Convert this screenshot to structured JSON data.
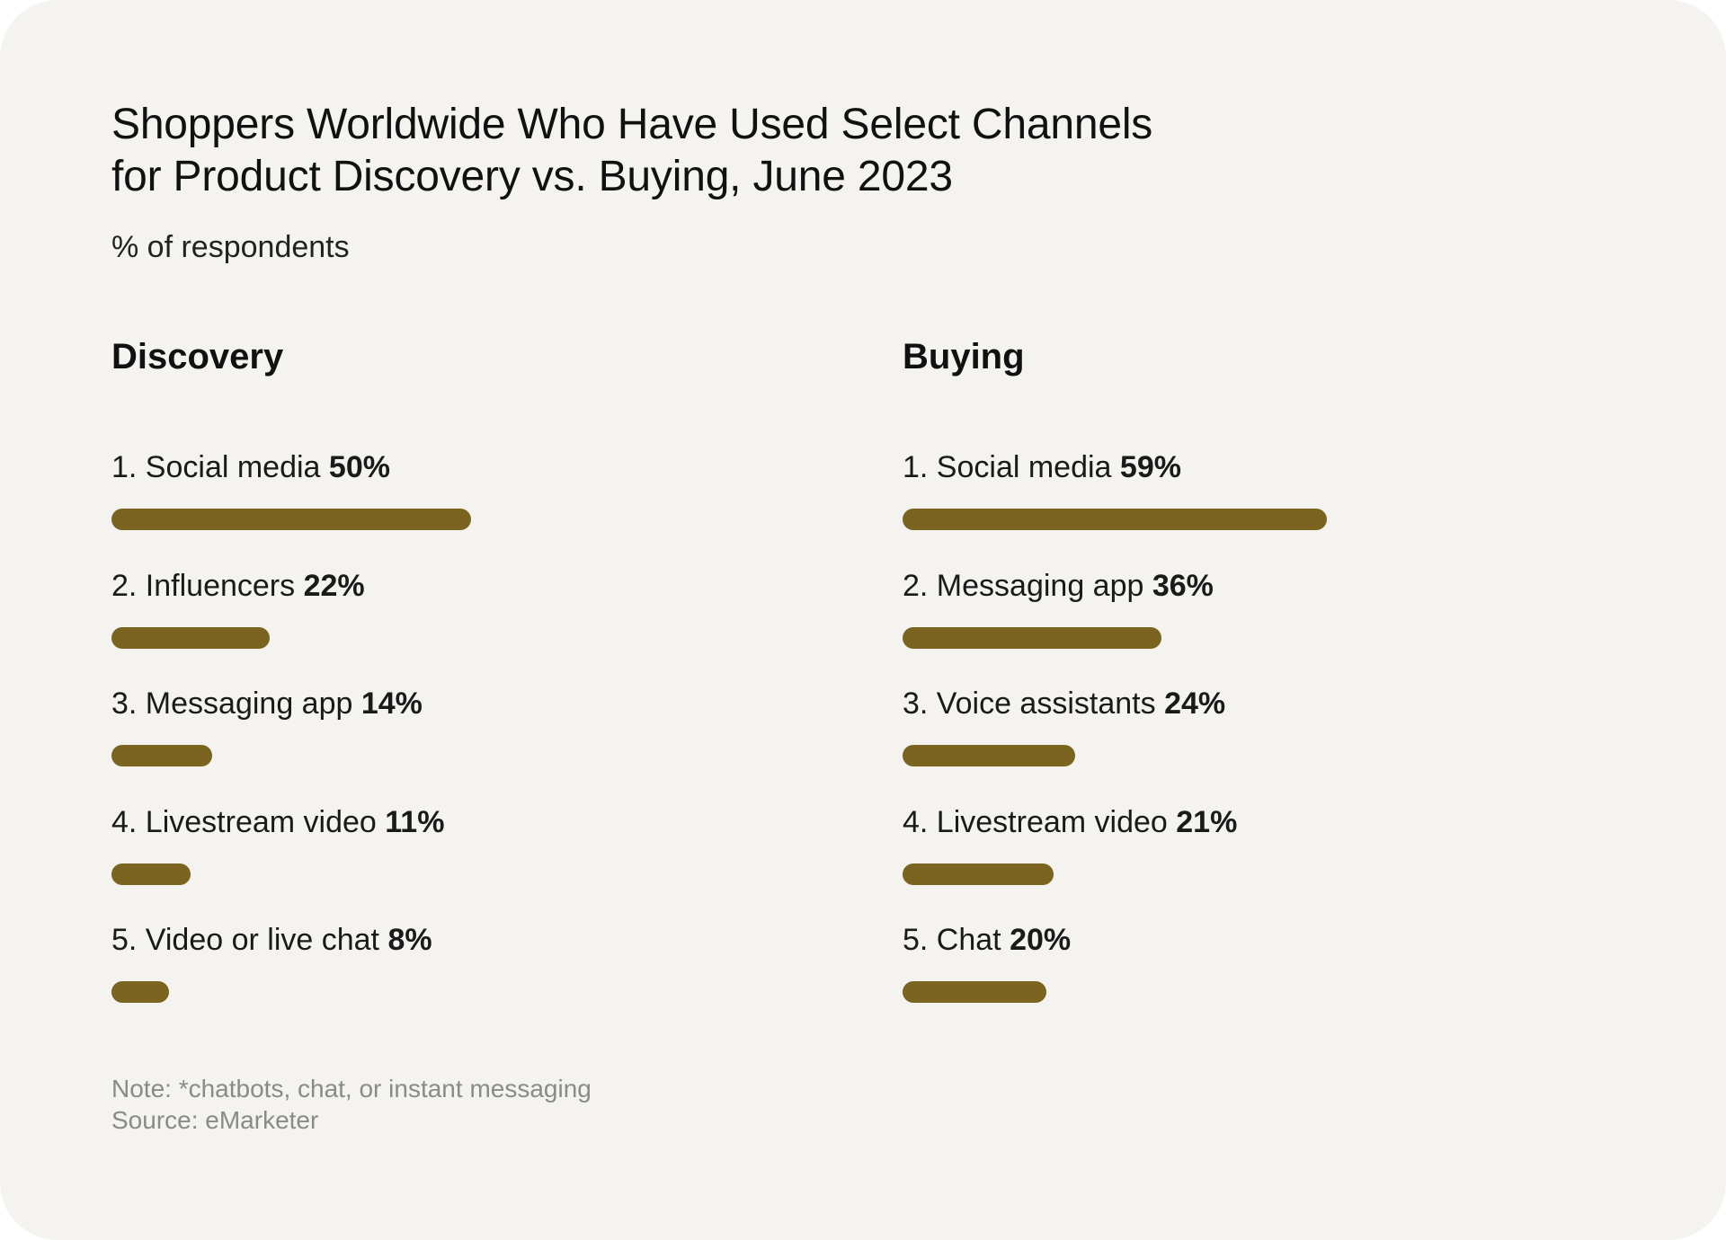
{
  "header": {
    "title_line1": "Shoppers Worldwide Who Have Used Select Channels",
    "title_line2": "for Product Discovery vs. Buying, June 2023",
    "subtitle": "% of respondents"
  },
  "chart_data": [
    {
      "type": "bar",
      "orientation": "horizontal",
      "title": "Discovery",
      "unit": "%",
      "xlim": [
        0,
        85
      ],
      "categories": [
        "1. Social media",
        "2. Influencers",
        "3. Messaging app",
        "4. Livestream video",
        "5. Video or live chat"
      ],
      "values": [
        50,
        22,
        14,
        11,
        8
      ],
      "value_labels": [
        "50%",
        "22%",
        "14%",
        "11%",
        "8%"
      ],
      "bar_color": "#7a6420"
    },
    {
      "type": "bar",
      "orientation": "horizontal",
      "title": "Buying",
      "unit": "%",
      "xlim": [
        0,
        85
      ],
      "categories": [
        "1. Social media",
        "2. Messaging app",
        "3. Voice assistants",
        "4. Livestream video",
        "5. Chat"
      ],
      "values": [
        59,
        36,
        24,
        21,
        20
      ],
      "value_labels": [
        "59%",
        "36%",
        "24%",
        "21%",
        "20%"
      ],
      "bar_color": "#7a6420"
    }
  ],
  "footer": {
    "note": "Note: *chatbots, chat, or instant messaging",
    "source": "Source: eMarketer"
  }
}
